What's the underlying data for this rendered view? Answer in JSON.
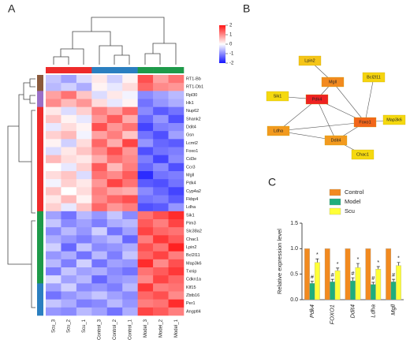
{
  "panels": [
    "A",
    "B",
    "C"
  ],
  "chart_data": [
    {
      "type": "heatmap",
      "columns": [
        "Scu_3",
        "Scu_2",
        "Scu_1",
        "Control_3",
        "Control_2",
        "Control_1",
        "Model_3",
        "Model_2",
        "Model_1"
      ],
      "column_group_colors": [
        "#ee2b2b",
        "#ee2b2b",
        "#ee2b2b",
        "#2b7fc0",
        "#2b7fc0",
        "#2b7fc0",
        "#1e9a4a",
        "#1e9a4a",
        "#1e9a4a"
      ],
      "rows": [
        "RT1-Bb",
        "RT1-Db1",
        "Rpl30",
        "Hk1",
        "Nup62",
        "Shank2",
        "Ddit4",
        "Gsn",
        "Lcmt2",
        "Foxo1",
        "Cd3e",
        "Ccr3",
        "Mgll",
        "Pdk4",
        "Cyp4a2",
        "Fkbp4",
        "Ldha",
        "Sik1",
        "Pim3",
        "Slc38a2",
        "Chac1",
        "Lpin2",
        "Bcl2l11",
        "Map3k6",
        "Txnip",
        "Cdkn1a",
        "Klf15",
        "Zbtb16",
        "Per1",
        "Angptl4"
      ],
      "row_group_colors": [
        "#8b5a3c",
        "#8b5a3c",
        "#9b6fc8",
        "#9b6fc8",
        "#ee2b2b",
        "#ee2b2b",
        "#ee2b2b",
        "#ee2b2b",
        "#ee2b2b",
        "#ee2b2b",
        "#ee2b2b",
        "#ee2b2b",
        "#ee2b2b",
        "#ee2b2b",
        "#ee2b2b",
        "#ee2b2b",
        "#ee2b2b",
        "#1e9a4a",
        "#1e9a4a",
        "#1e9a4a",
        "#1e9a4a",
        "#1e9a4a",
        "#1e9a4a",
        "#1e9a4a",
        "#1e9a4a",
        "#1e9a4a",
        "#2b7fc0",
        "#2b7fc0",
        "#2b7fc0",
        "#2b7fc0"
      ],
      "values": [
        [
          -0.5,
          -0.8,
          -0.3,
          0.2,
          -0.4,
          0.1,
          1.5,
          0.8,
          1.2
        ],
        [
          -0.6,
          -0.4,
          -0.7,
          0.1,
          -0.2,
          0.3,
          1.3,
          1.0,
          0.9
        ],
        [
          0.8,
          1.2,
          0.5,
          -0.3,
          0.2,
          -0.1,
          -1.0,
          -0.8,
          -0.6
        ],
        [
          1.0,
          0.6,
          0.9,
          0.3,
          -0.2,
          0.1,
          -1.2,
          -0.9,
          -0.7
        ],
        [
          0.2,
          -0.3,
          0.4,
          1.1,
          0.8,
          1.3,
          -1.0,
          -1.4,
          -1.2
        ],
        [
          0.5,
          0.1,
          -0.2,
          0.9,
          1.4,
          0.7,
          -1.3,
          -0.9,
          -1.5
        ],
        [
          -0.2,
          0.3,
          0.1,
          1.5,
          0.9,
          1.2,
          -1.6,
          -1.1,
          -1.0
        ],
        [
          0.4,
          0.6,
          -0.1,
          0.8,
          1.1,
          0.5,
          -1.2,
          -1.5,
          -0.8
        ],
        [
          0.1,
          -0.4,
          0.3,
          1.3,
          0.7,
          1.6,
          -0.9,
          -1.3,
          -1.4
        ],
        [
          -0.3,
          0.2,
          0.5,
          1.0,
          1.5,
          0.9,
          -1.5,
          -1.2,
          -1.1
        ],
        [
          0.6,
          0.3,
          0.2,
          0.7,
          1.2,
          1.0,
          -1.1,
          -1.6,
          -1.0
        ],
        [
          0.0,
          -0.2,
          0.4,
          1.4,
          0.6,
          1.1,
          -1.3,
          -1.0,
          -1.5
        ],
        [
          0.3,
          0.5,
          -0.3,
          1.2,
          1.0,
          1.4,
          -1.8,
          -1.2,
          -1.1
        ],
        [
          -0.1,
          0.4,
          0.2,
          0.9,
          1.6,
          1.2,
          -1.4,
          -1.5,
          -1.2
        ],
        [
          0.5,
          0.0,
          0.3,
          1.1,
          0.8,
          0.7,
          -1.0,
          -1.3,
          -1.6
        ],
        [
          0.2,
          0.6,
          0.1,
          1.0,
          1.3,
          1.5,
          -1.2,
          -1.1,
          -1.4
        ],
        [
          0.4,
          -0.2,
          0.5,
          1.3,
          0.9,
          1.1,
          -1.5,
          -1.4,
          -0.9
        ],
        [
          -0.8,
          -1.2,
          -0.6,
          -0.9,
          -0.5,
          -1.0,
          1.2,
          1.5,
          1.8
        ],
        [
          -0.5,
          -1.0,
          -0.8,
          -1.1,
          -0.7,
          -0.6,
          1.4,
          1.1,
          1.6
        ],
        [
          -1.0,
          -0.6,
          -0.9,
          -0.4,
          -1.2,
          -0.8,
          1.6,
          1.3,
          1.2
        ],
        [
          -0.7,
          -0.9,
          -1.1,
          -0.8,
          -0.6,
          -1.3,
          1.1,
          1.7,
          1.4
        ],
        [
          -0.4,
          -1.3,
          -0.5,
          -1.0,
          -0.9,
          -0.7,
          1.5,
          1.2,
          1.9
        ],
        [
          -0.9,
          -0.7,
          -1.2,
          -0.6,
          -1.1,
          -0.5,
          1.3,
          1.6,
          1.1
        ],
        [
          -0.6,
          -1.1,
          -0.4,
          -1.2,
          -0.8,
          -0.9,
          1.8,
          1.0,
          1.5
        ],
        [
          -1.1,
          -0.5,
          -0.8,
          -0.7,
          -1.0,
          -1.2,
          1.2,
          1.4,
          1.7
        ],
        [
          -0.3,
          -0.8,
          -0.6,
          -1.3,
          -0.9,
          -0.8,
          1.0,
          1.6,
          1.3
        ],
        [
          -0.8,
          -0.4,
          -1.0,
          -0.9,
          -1.1,
          -0.6,
          1.7,
          1.1,
          1.2
        ],
        [
          -1.2,
          -0.9,
          -0.7,
          -0.5,
          -0.8,
          -1.0,
          1.3,
          1.5,
          1.0
        ],
        [
          -0.5,
          -0.7,
          -1.1,
          -1.0,
          -0.6,
          -0.9,
          1.1,
          1.2,
          1.8
        ],
        [
          -0.9,
          -1.0,
          -0.6,
          -0.8,
          -1.2,
          -0.7,
          1.6,
          1.4,
          1.1
        ]
      ],
      "colormap": [
        "#1515ff",
        "#ffffff",
        "#ff1515"
      ],
      "clim": [
        -2,
        2
      ],
      "colorbar_ticks": [
        2,
        1,
        0,
        -1,
        -2
      ]
    },
    {
      "type": "bar",
      "categories": [
        "Pdk4",
        "FOXO1",
        "Ddit4",
        "Ldha",
        "Mgll"
      ],
      "ylabel": "Relative expression level",
      "ylim": [
        0,
        1.5
      ],
      "yticks": [
        {
          "value": 0,
          "label": "0.0"
        },
        0.5,
        {
          "value": 1,
          "label": "1.0"
        },
        1.5
      ],
      "legend": "top-right",
      "series": [
        {
          "name": "Control",
          "color": "#f28a1f",
          "values": [
            1,
            1,
            1,
            1,
            1
          ]
        },
        {
          "name": "Model",
          "color": "#1fae7c",
          "values": [
            0.32,
            0.35,
            0.37,
            0.3,
            0.35
          ],
          "errors": [
            0.04,
            0.05,
            0.06,
            0.04,
            0.05
          ],
          "marker": "#"
        },
        {
          "name": "Scu",
          "color": "#ffff38",
          "values": [
            0.73,
            0.57,
            0.63,
            0.6,
            0.67
          ],
          "errors": [
            0.07,
            0.05,
            0.08,
            0.05,
            0.06
          ],
          "marker": "*"
        }
      ]
    }
  ],
  "network": {
    "nodes": [
      {
        "label": "Lpin2",
        "color": "#f5c518"
      },
      {
        "label": "Mgll",
        "color": "#f28a1f"
      },
      {
        "label": "Sik1",
        "color": "#f5d90f"
      },
      {
        "label": "Pdk4",
        "color": "#ee2222"
      },
      {
        "label": "Bcl2l11",
        "color": "#f5d40f"
      },
      {
        "label": "Foxo1",
        "color": "#f2661a"
      },
      {
        "label": "Map3k6",
        "color": "#f5d90f"
      },
      {
        "label": "Ldha",
        "color": "#f29a1f"
      },
      {
        "label": "Ddit4",
        "color": "#f29a1f"
      },
      {
        "label": "Chac1",
        "color": "#f5d90f"
      }
    ],
    "edges": [
      [
        0,
        1
      ],
      [
        1,
        3
      ],
      [
        2,
        3
      ],
      [
        3,
        5
      ],
      [
        3,
        7
      ],
      [
        3,
        8
      ],
      [
        7,
        8
      ],
      [
        7,
        5
      ],
      [
        8,
        5
      ],
      [
        8,
        9
      ],
      [
        5,
        6
      ],
      [
        5,
        4
      ],
      [
        1,
        5
      ]
    ]
  }
}
